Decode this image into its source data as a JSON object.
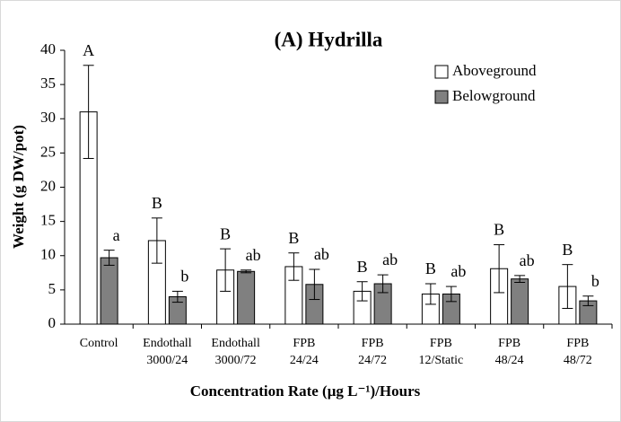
{
  "chart_data": {
    "type": "bar",
    "title": "(A) Hydrilla",
    "x_label": "Concentration Rate (μg L⁻¹)/Hours",
    "y_label": "Weight (g DW/pot)",
    "categories": [
      "Control",
      "Endothall\n3000/24",
      "Endothall\n3000/72",
      "FPB\n24/24",
      "FPB\n24/72",
      "FPB\n12/Static",
      "FPB\n48/24",
      "FPB\n48/72"
    ],
    "series": [
      {
        "name": "Aboveground",
        "color": "#ffffff",
        "values": [
          31.0,
          12.2,
          7.9,
          8.4,
          4.8,
          4.4,
          8.1,
          5.5
        ],
        "errors": [
          6.8,
          3.3,
          3.1,
          2.0,
          1.4,
          1.5,
          3.5,
          3.2
        ],
        "letters": [
          "A",
          "B",
          "B",
          "B",
          "B",
          "B",
          "B",
          "B"
        ]
      },
      {
        "name": "Belowground",
        "color": "#808080",
        "values": [
          9.7,
          4.0,
          7.7,
          5.8,
          5.9,
          4.4,
          6.6,
          3.4
        ],
        "errors": [
          1.1,
          0.8,
          0.2,
          2.2,
          1.3,
          1.1,
          0.5,
          0.7
        ],
        "letters": [
          "a",
          "b",
          "ab",
          "ab",
          "ab",
          "ab",
          "ab",
          "b"
        ]
      }
    ],
    "ylim": [
      0,
      40
    ],
    "yticks": [
      0,
      5,
      10,
      15,
      20,
      25,
      30,
      35,
      40
    ],
    "grid": false,
    "legend": "top-right"
  }
}
